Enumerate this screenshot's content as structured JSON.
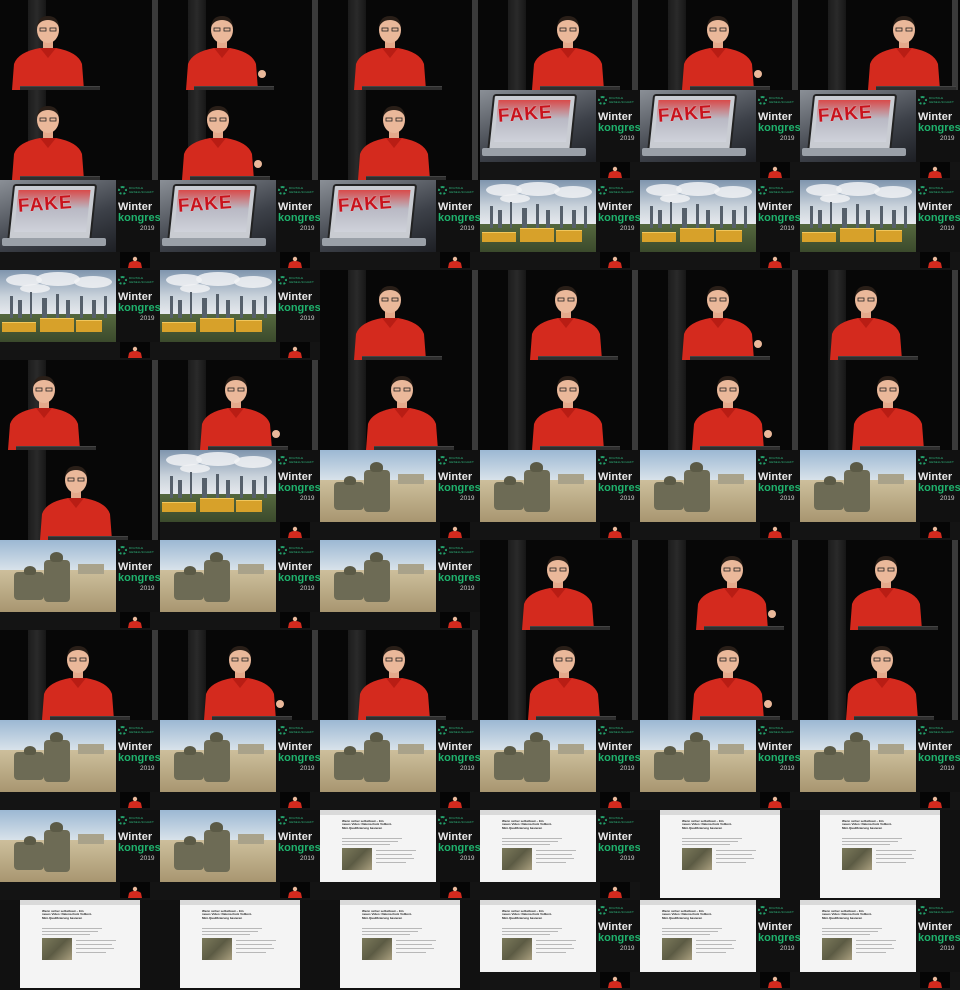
{
  "grid": {
    "columns": 6,
    "rows": 11,
    "frames": [
      "speaker",
      "speaker",
      "speaker",
      "speaker",
      "speaker",
      "speaker",
      "speaker",
      "speaker",
      "speaker",
      "fake",
      "fake",
      "fake",
      "fake",
      "fake",
      "fake",
      "industry",
      "industry",
      "industry",
      "industry",
      "industry",
      "speaker",
      "speaker",
      "speaker",
      "speaker",
      "speaker",
      "speaker",
      "speaker",
      "speaker",
      "speaker",
      "speaker",
      "speaker",
      "industry",
      "soldiers",
      "soldiers",
      "soldiers",
      "soldiers",
      "soldiers",
      "soldiers",
      "soldiers",
      "speaker",
      "speaker",
      "speaker",
      "speaker",
      "speaker",
      "speaker",
      "speaker",
      "speaker",
      "speaker",
      "soldiers",
      "soldiers",
      "soldiers",
      "soldiers",
      "soldiers",
      "soldiers",
      "soldiers",
      "soldiers",
      "web",
      "web",
      "web-full",
      "web-full",
      "web-full",
      "web-full",
      "web-full",
      "web",
      "web",
      "web"
    ]
  },
  "slide_branding": {
    "logo_text_line1": "DIGITALE",
    "logo_text_line2": "GESELLSCHAFT",
    "title_line1": "Winter",
    "title_line2": "kongress",
    "year": "2019"
  },
  "fake_slide": {
    "stamp_text": "FAKE"
  },
  "web_slide": {
    "headline": "Wenn sicher selbstbaut – Ein neues Video: Datenschutz Volltext-Mini-Qualifizierung basieren"
  },
  "colors": {
    "speaker_shirt": "#d42a1e",
    "brand_green": "#1fb36d",
    "brand_white": "#e9e9e9",
    "fake_red": "#c9121c",
    "background": "#000000"
  }
}
